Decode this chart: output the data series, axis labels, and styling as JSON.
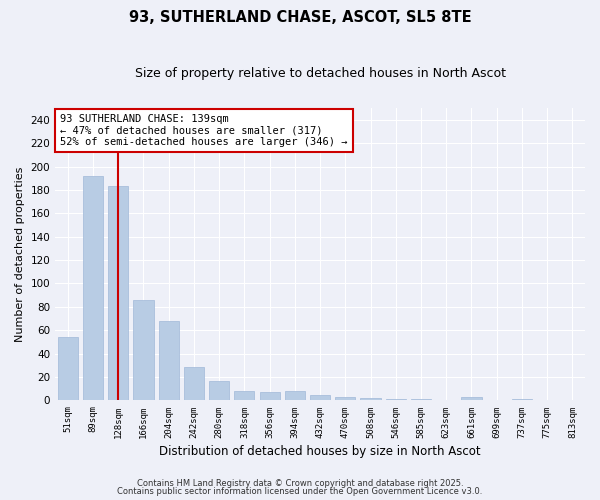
{
  "title1": "93, SUTHERLAND CHASE, ASCOT, SL5 8TE",
  "title2": "Size of property relative to detached houses in North Ascot",
  "xlabel": "Distribution of detached houses by size in North Ascot",
  "ylabel": "Number of detached properties",
  "categories": [
    "51sqm",
    "89sqm",
    "128sqm",
    "166sqm",
    "204sqm",
    "242sqm",
    "280sqm",
    "318sqm",
    "356sqm",
    "394sqm",
    "432sqm",
    "470sqm",
    "508sqm",
    "546sqm",
    "585sqm",
    "623sqm",
    "661sqm",
    "699sqm",
    "737sqm",
    "775sqm",
    "813sqm"
  ],
  "values": [
    54,
    192,
    183,
    86,
    68,
    29,
    17,
    8,
    7,
    8,
    5,
    3,
    2,
    1,
    1,
    0,
    3,
    0,
    1,
    0,
    0
  ],
  "bar_color": "#b8cce4",
  "bar_edgecolor": "#a0b8d8",
  "redline_index": 2,
  "redline_color": "#cc0000",
  "ylim": [
    0,
    250
  ],
  "yticks": [
    0,
    20,
    40,
    60,
    80,
    100,
    120,
    140,
    160,
    180,
    200,
    220,
    240
  ],
  "annotation_text": "93 SUTHERLAND CHASE: 139sqm\n← 47% of detached houses are smaller (317)\n52% of semi-detached houses are larger (346) →",
  "bg_color": "#eef0f8",
  "grid_color": "#ffffff",
  "footer1": "Contains HM Land Registry data © Crown copyright and database right 2025.",
  "footer2": "Contains public sector information licensed under the Open Government Licence v3.0."
}
